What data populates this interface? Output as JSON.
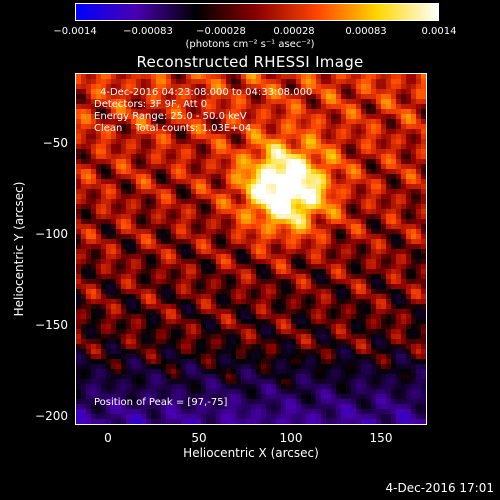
{
  "colorbar": {
    "tick_labels": [
      "−0.0014",
      "−0.00083",
      "−0.00028",
      "0.00028",
      "0.00083",
      "0.0014"
    ],
    "units": "(photons cm⁻² s⁻¹ asec⁻²)",
    "colors": [
      "#0000ff",
      "#4a00b0",
      "#000000",
      "#8b0000",
      "#ff4500",
      "#ffd700",
      "#ffffff"
    ]
  },
  "window": {
    "title": "Reconstructed RHESSI Image"
  },
  "info": {
    "time_range": "4-Dec-2016 04:23:08.000 to 04:33:08.000",
    "detectors": "Detectors: 3F 9F, Att 0",
    "energy_range": "Energy Range: 25.0 - 50.0 keV",
    "clean_counts": "Clean    Total counts: 1.03E+04",
    "peak_position": "Position of Peak = [97,-75]"
  },
  "chart_data": {
    "type": "heatmap",
    "title": "Reconstructed RHESSI Image",
    "xlabel": "Heliocentric X (arcsec)",
    "ylabel": "Heliocentric Y (arcsec)",
    "x_ticks": [
      "0",
      "50",
      "100",
      "150"
    ],
    "y_ticks": [
      "−50",
      "−100",
      "−150",
      "−200"
    ],
    "xlim": [
      -18,
      174
    ],
    "ylim": [
      -204,
      -12
    ],
    "peak": [
      97,
      -75
    ],
    "colorbar_range": [
      -0.0014,
      0.0014
    ]
  },
  "footer": {
    "timestamp": "4-Dec-2016 17:01"
  }
}
